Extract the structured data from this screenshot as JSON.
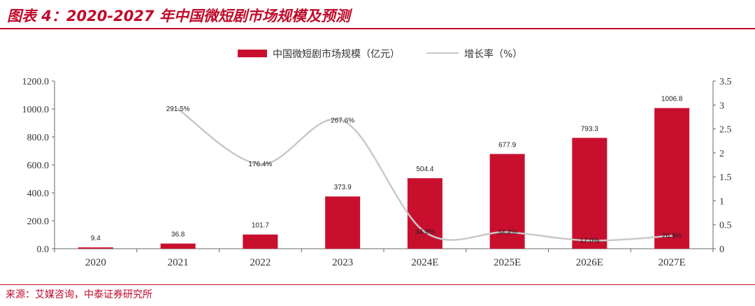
{
  "header": {
    "title": "图表 4：2020-2027 年中国微短剧市场规模及预测"
  },
  "footer": {
    "source": "来源：艾媒咨询，中泰证券研究所"
  },
  "colors": {
    "accent": "#c00a2a",
    "bar": "#c8102e",
    "line": "#c8c8c8"
  },
  "chart_data": {
    "type": "bar",
    "categories": [
      "2020",
      "2021",
      "2022",
      "2023",
      "2024E",
      "2025E",
      "2026E",
      "2027E"
    ],
    "series": [
      {
        "name": "中国微短剧市场规模（亿元）",
        "type": "bar",
        "axis": "left",
        "values": [
          9.4,
          36.8,
          101.7,
          373.9,
          504.4,
          677.9,
          793.3,
          1006.8
        ],
        "labels": [
          "9.4",
          "36.8",
          "101.7",
          "373.9",
          "504.4",
          "677.9",
          "793.3",
          "1006.8"
        ]
      },
      {
        "name": "增长率（%）",
        "type": "line",
        "axis": "right",
        "values": [
          null,
          2.915,
          1.764,
          2.676,
          0.349,
          0.344,
          0.17,
          0.269
        ],
        "labels": [
          "",
          "291.5%",
          "176.4%",
          "267.6%",
          "34.9%",
          "34.4%",
          "17.0%",
          "26.9%"
        ]
      }
    ],
    "y_left": {
      "ylim": [
        0,
        1200
      ],
      "ticks": [
        0,
        200,
        400,
        600,
        800,
        1000,
        1200
      ],
      "tick_labels": [
        "0.0",
        "200.0",
        "400.0",
        "600.0",
        "800.0",
        "1000.0",
        "1200.0"
      ]
    },
    "y_right": {
      "ylim": [
        0,
        3.5
      ],
      "ticks": [
        0,
        0.5,
        1,
        1.5,
        2,
        2.5,
        3,
        3.5
      ],
      "tick_labels": [
        "0",
        "0.5",
        "1",
        "1.5",
        "2",
        "2.5",
        "3",
        "3.5"
      ]
    },
    "grid": false,
    "legend": "top-center"
  }
}
